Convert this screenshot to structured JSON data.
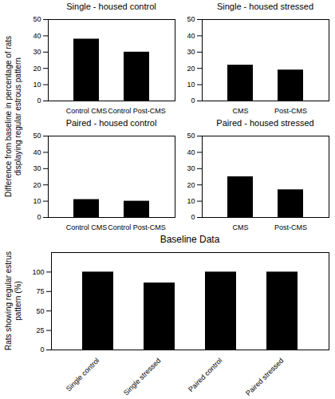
{
  "chart_data": [
    {
      "type": "bar",
      "title": "Single - housed control",
      "ylabel": "Difference from baseline in percentage of rats\ndisplaying regular estrous pattern",
      "categories": [
        "Control CMS",
        "Control Post-CMS"
      ],
      "values": [
        38,
        30
      ],
      "color": "#000000",
      "ylim": [
        0,
        50
      ],
      "yticks": [
        0,
        10,
        20,
        30,
        40,
        50
      ]
    },
    {
      "type": "bar",
      "title": "Single - housed stressed",
      "categories": [
        "CMS",
        "Post-CMS"
      ],
      "values": [
        22,
        19
      ],
      "color": "#000000",
      "ylim": [
        0,
        50
      ],
      "yticks": [
        0,
        10,
        20,
        30,
        40,
        50
      ]
    },
    {
      "type": "bar",
      "title": "Paired - housed control",
      "categories": [
        "Control CMS",
        "Control Post-CMS"
      ],
      "values": [
        11,
        10
      ],
      "color": "#000000",
      "ylim": [
        0,
        50
      ],
      "yticks": [
        0,
        10,
        20,
        30,
        40,
        50
      ]
    },
    {
      "type": "bar",
      "title": "Paired - housed stressed",
      "categories": [
        "CMS",
        "Post-CMS"
      ],
      "values": [
        25,
        17
      ],
      "color": "#000000",
      "ylim": [
        0,
        50
      ],
      "yticks": [
        0,
        10,
        20,
        30,
        40,
        50
      ]
    },
    {
      "type": "bar",
      "title": "Baseline Data",
      "ylabel": "Rats showing regular estrus\npattern (%)",
      "categories": [
        "Single control",
        "Single stressed",
        "Paired control",
        "Paired stressed"
      ],
      "values": [
        100,
        86,
        100,
        100
      ],
      "color": "#000000",
      "ylim": [
        0,
        125
      ],
      "yticks": [
        0,
        25,
        50,
        75,
        100
      ]
    }
  ]
}
